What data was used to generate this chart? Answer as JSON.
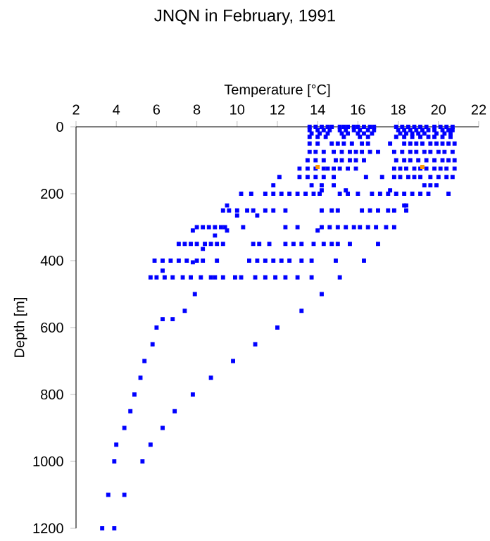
{
  "chart_data": {
    "type": "scatter",
    "title": "JNQN in February, 1991",
    "xlabel": "Temperature [°C]",
    "ylabel": "Depth [m]",
    "xlim": [
      2,
      22
    ],
    "xticks": [
      2,
      4,
      6,
      8,
      10,
      12,
      14,
      16,
      18,
      20,
      22
    ],
    "ylim": [
      1200,
      0
    ],
    "yticks": [
      0,
      200,
      400,
      600,
      800,
      1000,
      1200
    ],
    "marker": "square",
    "series": [
      {
        "color": "#0000ff",
        "x": [
          13.6,
          13.9,
          14.2,
          14.5,
          14.7,
          15.1,
          15.3,
          15.5,
          15.8,
          16.0,
          16.3,
          16.6,
          16.8,
          17.9,
          18.2,
          18.5,
          18.8,
          19.1,
          19.4,
          19.8,
          20.1,
          20.4,
          20.7,
          13.6,
          14.0,
          14.3,
          14.6,
          15.1,
          15.4,
          15.8,
          16.1,
          16.5,
          16.8,
          18.0,
          18.3,
          18.6,
          18.9,
          19.2,
          19.5,
          19.8,
          20.2,
          20.5,
          20.7,
          13.7,
          14.1,
          14.5,
          15.2,
          15.5,
          16.0,
          16.3,
          16.7,
          18.1,
          18.4,
          18.7,
          19.0,
          19.3,
          19.9,
          20.3,
          20.6,
          13.6,
          14.0,
          14.4,
          15.3,
          16.1,
          16.5,
          17.9,
          18.3,
          18.7,
          19.1,
          19.5,
          19.8,
          20.2,
          20.6,
          13.6,
          14.0,
          14.7,
          15.0,
          15.3,
          15.7,
          16.2,
          16.5,
          17.6,
          18.3,
          18.6,
          18.9,
          19.2,
          19.6,
          19.9,
          20.2,
          20.5,
          20.8,
          13.6,
          13.9,
          14.3,
          14.8,
          15.2,
          15.6,
          15.9,
          16.2,
          16.6,
          17.0,
          17.8,
          18.2,
          18.6,
          18.9,
          19.3,
          19.6,
          20.0,
          20.3,
          20.7,
          13.5,
          13.9,
          14.3,
          14.9,
          15.2,
          15.6,
          15.9,
          16.3,
          17.9,
          18.3,
          18.6,
          19.0,
          19.4,
          19.8,
          20.2,
          20.5,
          20.8,
          13.1,
          13.5,
          13.9,
          14.3,
          14.5,
          14.8,
          15.1,
          15.5,
          15.9,
          17.8,
          18.1,
          18.4,
          18.8,
          19.1,
          19.4,
          19.8,
          20.1,
          20.4,
          20.8,
          12.1,
          13.1,
          13.5,
          13.9,
          14.3,
          14.8,
          16.4,
          17.2,
          17.8,
          18.1,
          18.5,
          18.8,
          19.1,
          19.6,
          20.0,
          20.4,
          20.7,
          11.8,
          13.7,
          14.2,
          14.8,
          19.3,
          19.6,
          19.9,
          14.2,
          15.4,
          17.6,
          10.2,
          10.7,
          11.4,
          11.8,
          12.2,
          12.6,
          13.0,
          13.4,
          13.8,
          14.1,
          15.1,
          15.5,
          16.0,
          16.7,
          17.1,
          17.5,
          17.9,
          18.3,
          18.7,
          19.1,
          19.5,
          20.5,
          9.5,
          18.3,
          18.4,
          9.3,
          9.6,
          10.0,
          10.5,
          10.8,
          11.4,
          11.8,
          12.4,
          14.2,
          14.7,
          15.0,
          16.2,
          16.6,
          17.0,
          17.5,
          17.8,
          18.4,
          10.0,
          11.0,
          8.0,
          8.3,
          8.6,
          8.9,
          9.2,
          9.4,
          10.3,
          12.4,
          13.0,
          14.2,
          14.6,
          15.0,
          15.4,
          15.8,
          16.1,
          16.5,
          16.9,
          17.4,
          17.8,
          7.8,
          9.5,
          14.0,
          8.9,
          7.1,
          7.4,
          7.7,
          8.0,
          8.4,
          8.7,
          9.0,
          9.3,
          10.8,
          11.1,
          11.6,
          12.4,
          12.8,
          13.2,
          13.8,
          14.3,
          14.7,
          15.0,
          15.6,
          17.0,
          8.3,
          5.9,
          6.3,
          6.7,
          7.1,
          7.5,
          8.0,
          8.3,
          9.0,
          10.6,
          11.0,
          11.4,
          11.8,
          12.2,
          12.6,
          13.2,
          13.7,
          14.9,
          16.3,
          7.8,
          6.3,
          5.7,
          6.0,
          6.4,
          6.8,
          7.3,
          7.7,
          8.2,
          8.7,
          8.9,
          9.3,
          9.9,
          10.2,
          10.9,
          11.4,
          11.9,
          12.4,
          13.0,
          13.7,
          15.1,
          7.9,
          14.2,
          7.4,
          13.2,
          6.8,
          6.3,
          6.0,
          12.0,
          5.8,
          10.9,
          5.4,
          9.8,
          5.2,
          8.7,
          4.9,
          7.8,
          4.7,
          6.9,
          4.4,
          6.3,
          4.0,
          5.7,
          3.9,
          5.3,
          3.6,
          4.4,
          3.3,
          3.9
        ],
        "values": [
          0,
          0,
          0,
          0,
          0,
          0,
          0,
          0,
          0,
          0,
          0,
          0,
          0,
          0,
          0,
          0,
          0,
          0,
          0,
          0,
          0,
          0,
          0,
          10,
          10,
          10,
          10,
          10,
          10,
          10,
          10,
          10,
          10,
          10,
          10,
          10,
          10,
          10,
          10,
          10,
          10,
          10,
          10,
          20,
          20,
          20,
          20,
          20,
          20,
          20,
          20,
          20,
          20,
          20,
          20,
          20,
          20,
          20,
          20,
          30,
          30,
          30,
          30,
          30,
          30,
          30,
          30,
          30,
          30,
          30,
          30,
          30,
          30,
          50,
          50,
          50,
          50,
          50,
          50,
          50,
          50,
          50,
          50,
          50,
          50,
          50,
          50,
          50,
          50,
          50,
          50,
          75,
          75,
          75,
          75,
          75,
          75,
          75,
          75,
          75,
          75,
          75,
          75,
          75,
          75,
          75,
          75,
          75,
          75,
          75,
          100,
          100,
          100,
          100,
          100,
          100,
          100,
          100,
          100,
          100,
          100,
          100,
          100,
          100,
          100,
          100,
          100,
          125,
          125,
          125,
          125,
          125,
          125,
          125,
          125,
          125,
          125,
          125,
          125,
          125,
          125,
          125,
          125,
          125,
          125,
          125,
          150,
          150,
          150,
          150,
          150,
          150,
          150,
          150,
          150,
          150,
          150,
          150,
          150,
          150,
          150,
          150,
          150,
          175,
          175,
          175,
          175,
          175,
          175,
          175,
          190,
          190,
          190,
          200,
          200,
          200,
          200,
          200,
          200,
          200,
          200,
          200,
          200,
          200,
          200,
          200,
          200,
          200,
          200,
          200,
          200,
          200,
          200,
          200,
          200,
          235,
          235,
          235,
          250,
          250,
          250,
          250,
          250,
          250,
          250,
          250,
          250,
          250,
          250,
          250,
          250,
          250,
          250,
          250,
          250,
          265,
          265,
          300,
          300,
          300,
          300,
          300,
          300,
          300,
          300,
          300,
          300,
          300,
          300,
          300,
          300,
          300,
          300,
          300,
          300,
          300,
          310,
          310,
          310,
          325,
          350,
          350,
          350,
          350,
          350,
          350,
          350,
          350,
          350,
          350,
          350,
          350,
          350,
          350,
          350,
          350,
          350,
          350,
          350,
          350,
          365,
          400,
          400,
          400,
          400,
          400,
          400,
          400,
          400,
          400,
          400,
          400,
          400,
          400,
          400,
          400,
          400,
          400,
          400,
          405,
          430,
          450,
          450,
          450,
          450,
          450,
          450,
          450,
          450,
          450,
          450,
          450,
          450,
          450,
          450,
          450,
          450,
          450,
          450,
          450,
          500,
          500,
          550,
          550,
          575,
          575,
          600,
          600,
          650,
          650,
          700,
          700,
          750,
          750,
          800,
          800,
          850,
          850,
          900,
          900,
          950,
          950,
          1000,
          1000,
          1100,
          1100,
          1200,
          1200
        ]
      },
      {
        "color": "#ff9900",
        "x": [
          14.0,
          19.2
        ],
        "values": [
          120,
          120
        ]
      }
    ]
  }
}
